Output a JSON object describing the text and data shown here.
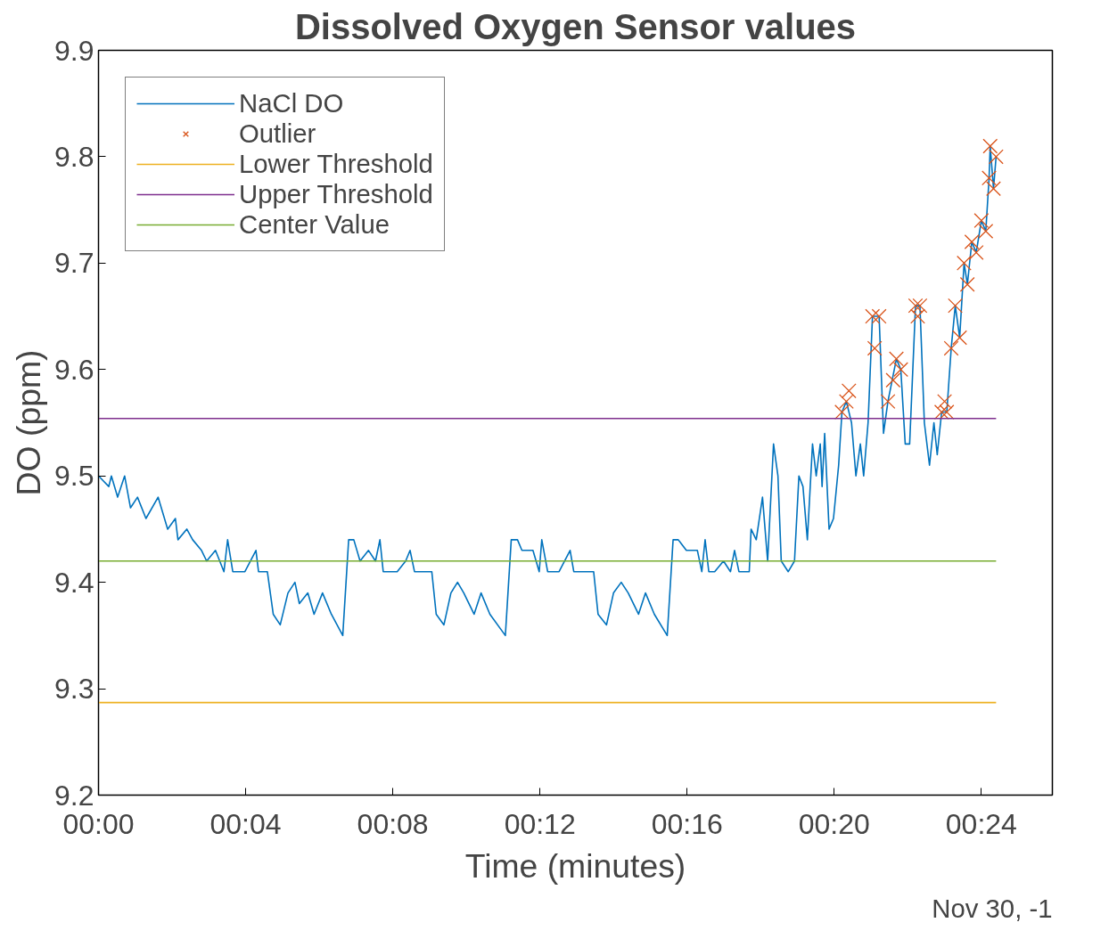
{
  "chart_data": {
    "type": "line",
    "title": "Dissolved Oxygen Sensor values",
    "xlabel": "Time (minutes)",
    "ylabel": "DO (ppm)",
    "annotations": [
      "Nov 30, -1"
    ],
    "xlim": [
      0,
      25.93
    ],
    "ylim": [
      9.2,
      9.9
    ],
    "xticks": [
      {
        "value": 0,
        "label": "00:00"
      },
      {
        "value": 4,
        "label": "00:04"
      },
      {
        "value": 8,
        "label": "00:08"
      },
      {
        "value": 12,
        "label": "00:12"
      },
      {
        "value": 16,
        "label": "00:16"
      },
      {
        "value": 20,
        "label": "00:20"
      },
      {
        "value": 24,
        "label": "00:24"
      }
    ],
    "yticks": [
      9.2,
      9.3,
      9.4,
      9.5,
      9.6,
      9.7,
      9.8,
      9.9
    ],
    "grid": false,
    "legend": "top left",
    "line_style": "solid",
    "series": [
      {
        "name": "NaCl DO",
        "color": "#0072bd",
        "x": [
          0,
          0.28,
          0.35,
          0.52,
          0.71,
          0.87,
          1.06,
          1.29,
          1.62,
          1.88,
          2.09,
          2.16,
          2.4,
          2.56,
          2.8,
          2.94,
          3.18,
          3.41,
          3.51,
          3.65,
          3.98,
          4.28,
          4.35,
          4.59,
          4.75,
          4.94,
          5.15,
          5.34,
          5.46,
          5.69,
          5.86,
          6.09,
          6.33,
          6.64,
          6.8,
          6.94,
          7.11,
          7.34,
          7.53,
          7.65,
          7.74,
          8.12,
          8.35,
          8.47,
          8.59,
          9.06,
          9.18,
          9.39,
          9.58,
          9.76,
          9.93,
          10.21,
          10.4,
          10.64,
          11.06,
          11.22,
          11.39,
          11.51,
          11.81,
          11.98,
          12.05,
          12.21,
          12.52,
          12.82,
          12.92,
          13.46,
          13.58,
          13.81,
          14.0,
          14.21,
          14.4,
          14.68,
          14.87,
          15.11,
          15.46,
          15.62,
          15.76,
          15.98,
          16.12,
          16.28,
          16.4,
          16.49,
          16.59,
          16.75,
          16.99,
          17.18,
          17.29,
          17.41,
          17.69,
          17.74,
          17.88,
          18.05,
          18.19,
          18.35,
          18.47,
          18.56,
          18.75,
          18.92,
          19.04,
          19.15,
          19.27,
          19.41,
          19.51,
          19.62,
          19.67,
          19.74,
          19.86,
          19.98,
          20.12,
          20.21,
          20.33,
          20.47,
          20.59,
          20.71,
          20.8,
          20.92,
          21.04,
          21.22,
          21.34,
          21.46,
          21.69,
          21.81,
          21.93,
          22.05,
          22.21,
          22.33,
          22.45,
          22.59,
          22.71,
          22.8,
          22.92,
          23.06,
          23.18,
          23.29,
          23.41,
          23.53,
          23.62,
          23.74,
          23.86,
          24.0,
          24.12,
          24.21,
          24.24,
          24.33,
          24.4
        ],
        "values": [
          9.5,
          9.49,
          9.5,
          9.48,
          9.5,
          9.47,
          9.48,
          9.46,
          9.48,
          9.45,
          9.46,
          9.44,
          9.45,
          9.44,
          9.43,
          9.42,
          9.43,
          9.41,
          9.44,
          9.41,
          9.41,
          9.43,
          9.41,
          9.41,
          9.37,
          9.36,
          9.39,
          9.4,
          9.38,
          9.39,
          9.37,
          9.39,
          9.37,
          9.35,
          9.44,
          9.44,
          9.42,
          9.43,
          9.42,
          9.44,
          9.41,
          9.41,
          9.42,
          9.43,
          9.41,
          9.41,
          9.37,
          9.36,
          9.39,
          9.4,
          9.39,
          9.37,
          9.39,
          9.37,
          9.35,
          9.44,
          9.44,
          9.43,
          9.43,
          9.41,
          9.44,
          9.41,
          9.41,
          9.43,
          9.41,
          9.41,
          9.37,
          9.36,
          9.39,
          9.4,
          9.39,
          9.37,
          9.39,
          9.37,
          9.35,
          9.44,
          9.44,
          9.43,
          9.43,
          9.43,
          9.41,
          9.44,
          9.41,
          9.41,
          9.42,
          9.41,
          9.43,
          9.41,
          9.41,
          9.45,
          9.44,
          9.48,
          9.42,
          9.53,
          9.5,
          9.42,
          9.41,
          9.42,
          9.5,
          9.49,
          9.44,
          9.53,
          9.5,
          9.53,
          9.49,
          9.54,
          9.45,
          9.46,
          9.51,
          9.56,
          9.57,
          9.55,
          9.5,
          9.53,
          9.5,
          9.55,
          9.65,
          9.65,
          9.54,
          9.57,
          9.61,
          9.6,
          9.53,
          9.53,
          9.66,
          9.66,
          9.55,
          9.51,
          9.55,
          9.52,
          9.56,
          9.56,
          9.62,
          9.66,
          9.63,
          9.7,
          9.68,
          9.72,
          9.71,
          9.74,
          9.73,
          9.78,
          9.81,
          9.77,
          9.8
        ]
      },
      {
        "name": "Outlier",
        "type": "scatter",
        "marker": "cross",
        "color": "#d95319",
        "x": [
          20.21,
          20.33,
          20.4,
          21.04,
          21.1,
          21.22,
          21.46,
          21.6,
          21.69,
          21.81,
          22.21,
          22.27,
          22.33,
          22.92,
          23.0,
          23.06,
          23.18,
          23.29,
          23.41,
          23.53,
          23.62,
          23.74,
          23.86,
          24.0,
          24.12,
          24.21,
          24.24,
          24.33,
          24.4
        ],
        "values": [
          9.56,
          9.57,
          9.58,
          9.65,
          9.62,
          9.65,
          9.57,
          9.59,
          9.61,
          9.6,
          9.66,
          9.65,
          9.66,
          9.56,
          9.57,
          9.56,
          9.62,
          9.66,
          9.63,
          9.7,
          9.68,
          9.72,
          9.71,
          9.74,
          9.73,
          9.78,
          9.81,
          9.77,
          9.8
        ]
      },
      {
        "name": "Lower Threshold",
        "type": "line",
        "color": "#edb120",
        "x": [
          0,
          24.4
        ],
        "values": [
          9.287,
          9.287
        ]
      },
      {
        "name": "Upper Threshold",
        "type": "line",
        "color": "#7e2f8e",
        "x": [
          0,
          24.4
        ],
        "values": [
          9.554,
          9.554
        ]
      },
      {
        "name": "Center Value",
        "type": "line",
        "color": "#77ac30",
        "x": [
          0,
          24.4
        ],
        "values": [
          9.42,
          9.42
        ]
      }
    ]
  }
}
